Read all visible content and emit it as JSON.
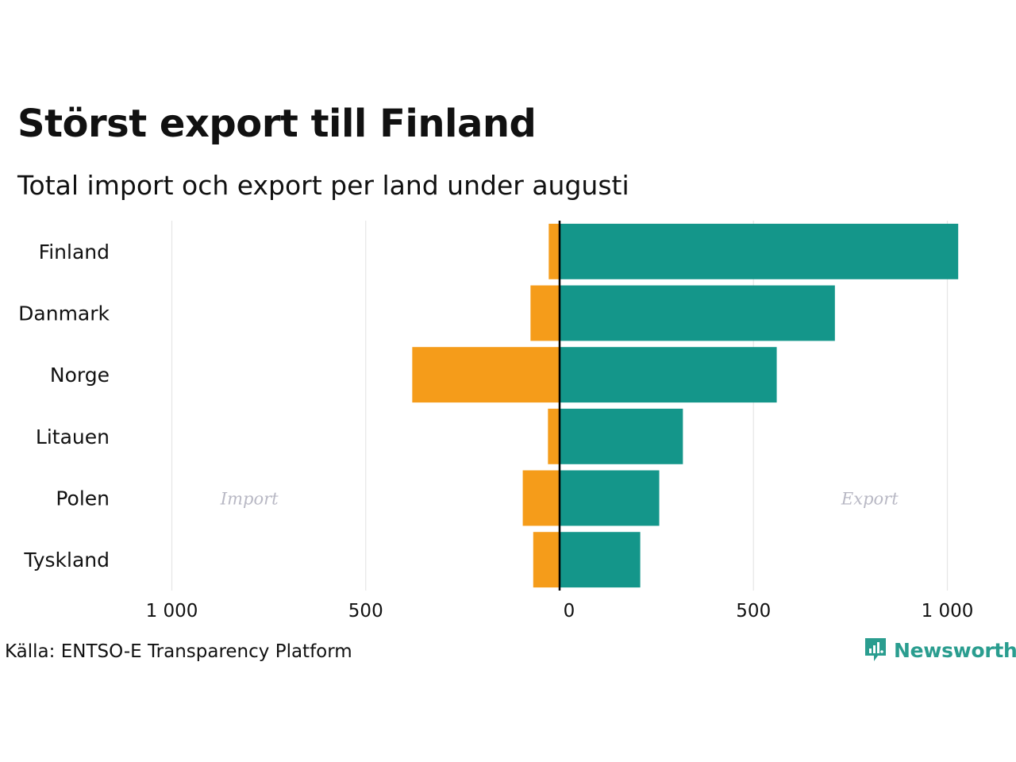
{
  "title": "Störst export till Finland",
  "subtitle": "Total import och export per land under augusti",
  "source": "Källa: ENTSO-E Transparency Platform",
  "brand": "Newsworthy",
  "colors": {
    "import": "#f59c1a",
    "export": "#14968a",
    "brand": "#2a9d8f",
    "grid": "#e6e6e6",
    "annotation": "#b8b8c4"
  },
  "chart_data": {
    "type": "bar",
    "orientation": "horizontal",
    "categories": [
      "Finland",
      "Danmark",
      "Norge",
      "Litauen",
      "Polen",
      "Tyskland"
    ],
    "series": [
      {
        "name": "Import",
        "values": [
          28,
          75,
          380,
          30,
          95,
          68
        ]
      },
      {
        "name": "Export",
        "values": [
          1028,
          710,
          560,
          318,
          257,
          208
        ]
      }
    ],
    "xlim": [
      -1000,
      1000
    ],
    "x_ticks": [
      -1000,
      -500,
      0,
      500,
      1000
    ],
    "x_tick_labels": [
      "1 000",
      "500",
      "0",
      "500",
      "1 000"
    ],
    "annotations": [
      {
        "text": "Import",
        "x": -800,
        "category": "Polen"
      },
      {
        "text": "Export",
        "x": 800,
        "category": "Polen"
      }
    ],
    "grid": true
  }
}
